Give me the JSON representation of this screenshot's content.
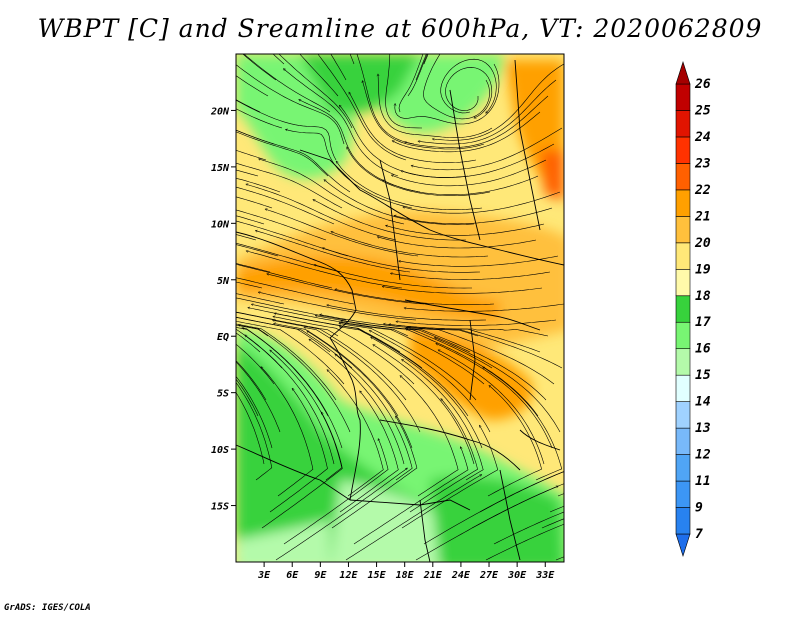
{
  "title": "WBPT [C] and Sreamline at 600hPa, VT: 2020062809",
  "footer": "GrADS: IGES/COLA",
  "map": {
    "lat_range": [
      -20,
      25
    ],
    "lon_range": [
      0,
      35
    ],
    "lat_ticks": [
      {
        "value": 20,
        "label": "20N"
      },
      {
        "value": 15,
        "label": "15N"
      },
      {
        "value": 10,
        "label": "10N"
      },
      {
        "value": 5,
        "label": "5N"
      },
      {
        "value": 0,
        "label": "EQ"
      },
      {
        "value": -5,
        "label": "5S"
      },
      {
        "value": -10,
        "label": "10S"
      },
      {
        "value": -15,
        "label": "15S"
      }
    ],
    "lon_ticks": [
      {
        "value": 3,
        "label": "3E"
      },
      {
        "value": 6,
        "label": "6E"
      },
      {
        "value": 9,
        "label": "9E"
      },
      {
        "value": 12,
        "label": "12E"
      },
      {
        "value": 15,
        "label": "15E"
      },
      {
        "value": 18,
        "label": "18E"
      },
      {
        "value": 21,
        "label": "21E"
      },
      {
        "value": 24,
        "label": "24E"
      },
      {
        "value": 27,
        "label": "27E"
      },
      {
        "value": 30,
        "label": "30E"
      },
      {
        "value": 33,
        "label": "33E"
      }
    ]
  },
  "colorbar": {
    "levels": [
      {
        "label": "7",
        "color": "#1e6eeb"
      },
      {
        "label": "9",
        "color": "#2882f0"
      },
      {
        "label": "11",
        "color": "#3c96f5"
      },
      {
        "label": "12",
        "color": "#50a5f5"
      },
      {
        "label": "13",
        "color": "#78b9fa"
      },
      {
        "label": "14",
        "color": "#a0d2ff"
      },
      {
        "label": "15",
        "color": "#e1ffff"
      },
      {
        "label": "16",
        "color": "#b4faaa"
      },
      {
        "label": "17",
        "color": "#78f573"
      },
      {
        "label": "18",
        "color": "#37d23c"
      },
      {
        "label": "19",
        "color": "#fffaaa"
      },
      {
        "label": "20",
        "color": "#ffe878"
      },
      {
        "label": "21",
        "color": "#ffc03c"
      },
      {
        "label": "22",
        "color": "#ffa000"
      },
      {
        "label": "23",
        "color": "#ff6000"
      },
      {
        "label": "24",
        "color": "#ff3200"
      },
      {
        "label": "25",
        "color": "#e11400"
      },
      {
        "label": "26",
        "color": "#c00000"
      },
      {
        "label": "",
        "color": "#a50000"
      }
    ]
  }
}
